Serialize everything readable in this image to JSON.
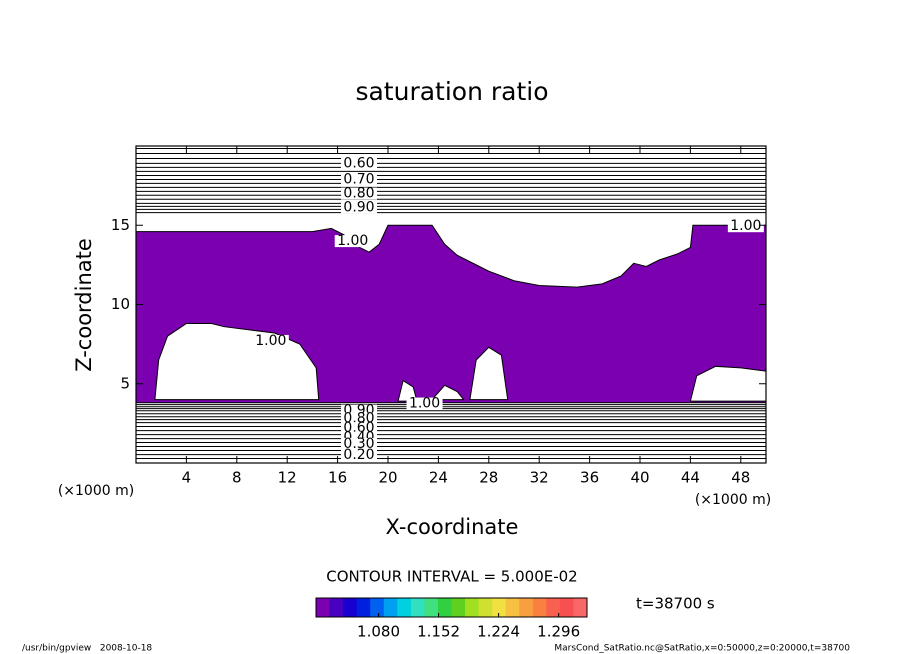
{
  "chart_data": {
    "type": "contour",
    "title": "saturation ratio",
    "xlabel": "X-coordinate",
    "ylabel": "Z-coordinate",
    "xunit": "(×1000 m)",
    "yunit": "(×1000 m)",
    "xlim": [
      0,
      50
    ],
    "ylim": [
      0,
      20
    ],
    "xticks": [
      4,
      8,
      12,
      16,
      20,
      24,
      28,
      32,
      36,
      40,
      44,
      48
    ],
    "yticks": [
      5,
      10,
      15
    ],
    "fill_color": "#7a00b0",
    "fill_region": {
      "x": [
        0,
        14,
        15.5,
        16.5,
        17.5,
        18.5,
        19.3,
        20,
        23.5,
        24.5,
        25.5,
        27,
        28,
        30,
        32,
        35,
        37,
        38.5,
        39.5,
        40.5,
        41.5,
        43,
        44,
        44.2,
        50,
        50,
        0
      ],
      "z": [
        14.6,
        14.6,
        14.8,
        14.4,
        13.7,
        13.3,
        13.8,
        15,
        15,
        13.8,
        13.1,
        12.5,
        12.1,
        11.5,
        11.2,
        11.1,
        11.3,
        11.8,
        12.6,
        12.4,
        12.8,
        13.2,
        13.6,
        15,
        15,
        3.8,
        3.8
      ]
    },
    "holes": [
      {
        "x": [
          1.5,
          1.8,
          2.5,
          4,
          6,
          7,
          9,
          11,
          13,
          14.3,
          14.5
        ],
        "z": [
          4,
          6.5,
          8,
          8.8,
          8.8,
          8.6,
          8.4,
          8.2,
          7.5,
          6,
          4
        ]
      },
      {
        "x": [
          20.8,
          21.2,
          22,
          22.3
        ],
        "z": [
          3.9,
          5.2,
          4.8,
          3.9
        ]
      },
      {
        "x": [
          23.5,
          24.5,
          25.5,
          26
        ],
        "z": [
          4,
          4.9,
          4.5,
          4
        ]
      },
      {
        "x": [
          26.5,
          27,
          28,
          29,
          29.5
        ],
        "z": [
          4,
          6.5,
          7.3,
          6.8,
          4
        ]
      },
      {
        "x": [
          44,
          44.5,
          46,
          48,
          50,
          50
        ],
        "z": [
          3.9,
          5.5,
          6.1,
          6,
          5.8,
          3.9
        ]
      }
    ],
    "upper_lines_z": [
      19.84,
      19.53,
      19.21,
      18.9,
      18.65,
      18.4,
      18.14,
      17.89,
      17.64,
      17.39,
      17.14,
      16.89,
      16.64,
      16.38,
      16.19,
      16.0,
      15.8
    ],
    "lower_lines_z": [
      3.68,
      3.55,
      3.43,
      3.3,
      3.11,
      2.92,
      2.74,
      2.55,
      2.3,
      2.04,
      1.79,
      1.54,
      1.29,
      1.04,
      0.79,
      0.53,
      0.28
    ],
    "contour_labels": [
      {
        "label": "0.60",
        "x": 17.7,
        "z": 18.9
      },
      {
        "label": "0.70",
        "x": 17.7,
        "z": 17.89
      },
      {
        "label": "0.80",
        "x": 17.7,
        "z": 17.0
      },
      {
        "label": "0.90",
        "x": 17.7,
        "z": 16.13
      },
      {
        "label": "1.00",
        "x": 48.4,
        "z": 14.94
      },
      {
        "label": "1.00",
        "x": 17.2,
        "z": 14.0
      },
      {
        "label": "1.00",
        "x": 10.7,
        "z": 7.7
      },
      {
        "label": "1.00",
        "x": 22.9,
        "z": 3.75
      },
      {
        "label": "0.90",
        "x": 17.7,
        "z": 3.3
      },
      {
        "label": "0.80",
        "x": 17.7,
        "z": 2.8
      },
      {
        "label": "0.60",
        "x": 17.7,
        "z": 2.2
      },
      {
        "label": "0.40",
        "x": 17.7,
        "z": 1.6
      },
      {
        "label": "0.30",
        "x": 17.7,
        "z": 1.2
      },
      {
        "label": "0.20",
        "x": 17.7,
        "z": 0.5
      }
    ],
    "contour_interval": "CONTOUR INTERVAL = 5.000E-02",
    "time_label": "t=38700 s",
    "colorbar": {
      "lim": [
        1.005,
        1.33
      ],
      "ticks": [
        {
          "value": 1.08,
          "label": "1.080"
        },
        {
          "value": 1.152,
          "label": "1.152"
        },
        {
          "value": 1.224,
          "label": "1.224"
        },
        {
          "value": 1.296,
          "label": "1.296"
        }
      ],
      "colors": [
        "#7a00b0",
        "#4a00c0",
        "#1800d0",
        "#0020e0",
        "#0060f0",
        "#00a0f0",
        "#00d0e0",
        "#30e0c0",
        "#40e080",
        "#30d040",
        "#60d020",
        "#a0e020",
        "#d0e030",
        "#f0e040",
        "#f8c040",
        "#f8a040",
        "#f88040",
        "#f86050",
        "#f85050",
        "#f86868"
      ]
    },
    "footer_left": "/usr/bin/gpview   2008-10-18",
    "footer_right": "MarsCond_SatRatio.nc@SatRatio,x=0:50000,z=0:20000,t=38700"
  }
}
